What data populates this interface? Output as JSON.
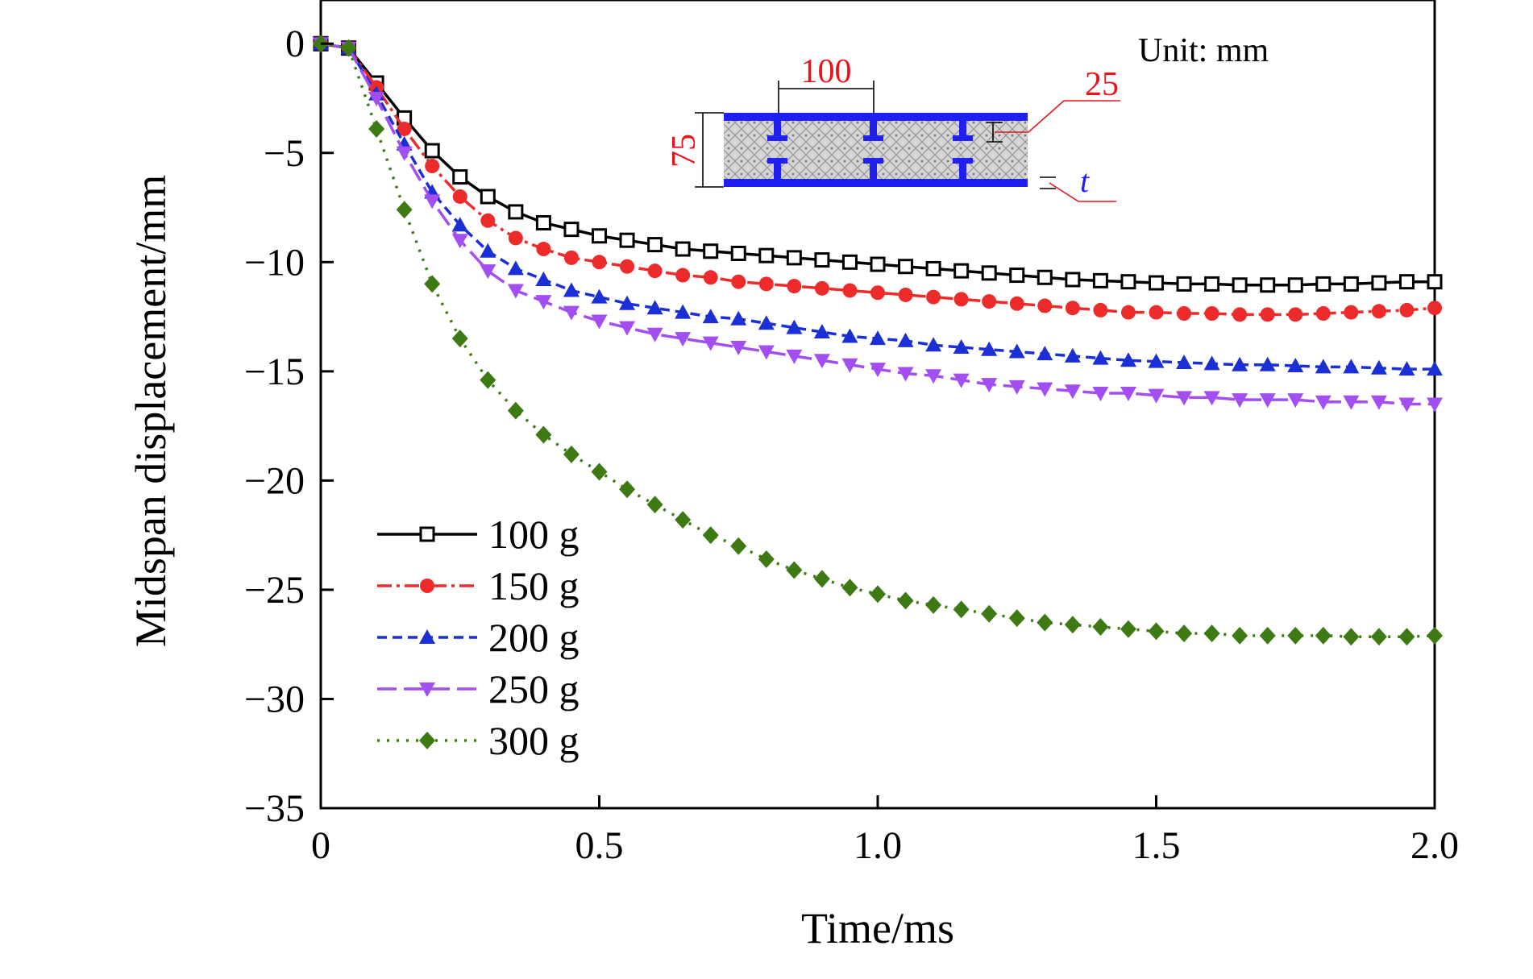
{
  "chart_data": {
    "type": "line",
    "xlabel": "Time/ms",
    "ylabel": "Midspan displacement/mm",
    "xlim": [
      0,
      2.0
    ],
    "ylim": [
      -35,
      2
    ],
    "xticks": [
      0,
      0.5,
      1.0,
      1.5,
      2.0
    ],
    "xtick_labels": [
      "0",
      "0.5",
      "1.0",
      "1.5",
      "2.0"
    ],
    "yticks": [
      0,
      -5,
      -10,
      -15,
      -20,
      -25,
      -30,
      -35
    ],
    "ytick_labels": [
      "0",
      "−5",
      "−10",
      "−15",
      "−20",
      "−25",
      "−30",
      "−35"
    ],
    "grid": false,
    "legend_position": "bottom-left",
    "x": [
      0,
      0.05,
      0.1,
      0.15,
      0.2,
      0.25,
      0.3,
      0.35,
      0.4,
      0.45,
      0.5,
      0.55,
      0.6,
      0.65,
      0.7,
      0.75,
      0.8,
      0.85,
      0.9,
      0.95,
      1.0,
      1.05,
      1.1,
      1.15,
      1.2,
      1.25,
      1.3,
      1.35,
      1.4,
      1.45,
      1.5,
      1.55,
      1.6,
      1.65,
      1.7,
      1.75,
      1.8,
      1.85,
      1.9,
      1.95,
      2.0
    ],
    "series": [
      {
        "name": "100 g",
        "color": "#000000",
        "marker": "square-open",
        "dash": "solid",
        "values": [
          0,
          -0.2,
          -1.8,
          -3.4,
          -4.9,
          -6.1,
          -7.0,
          -7.7,
          -8.2,
          -8.5,
          -8.8,
          -9.0,
          -9.2,
          -9.4,
          -9.5,
          -9.6,
          -9.7,
          -9.8,
          -9.9,
          -10.0,
          -10.1,
          -10.2,
          -10.3,
          -10.4,
          -10.5,
          -10.6,
          -10.7,
          -10.8,
          -10.85,
          -10.9,
          -10.95,
          -11.0,
          -11.0,
          -11.05,
          -11.05,
          -11.05,
          -11.0,
          -11.0,
          -10.95,
          -10.9,
          -10.9
        ]
      },
      {
        "name": "150 g",
        "color": "#ee2b2b",
        "marker": "circle",
        "dash": "dashdot",
        "values": [
          0,
          -0.2,
          -2.0,
          -3.9,
          -5.6,
          -7.0,
          -8.1,
          -8.9,
          -9.4,
          -9.8,
          -10.0,
          -10.2,
          -10.4,
          -10.6,
          -10.7,
          -10.9,
          -11.0,
          -11.1,
          -11.2,
          -11.3,
          -11.4,
          -11.5,
          -11.6,
          -11.7,
          -11.8,
          -11.9,
          -12.0,
          -12.1,
          -12.2,
          -12.3,
          -12.3,
          -12.35,
          -12.35,
          -12.4,
          -12.4,
          -12.4,
          -12.35,
          -12.3,
          -12.25,
          -12.2,
          -12.1
        ]
      },
      {
        "name": "200 g",
        "color": "#1b2fd6",
        "marker": "triangle-up",
        "dash": "dash",
        "values": [
          0,
          -0.2,
          -2.3,
          -4.6,
          -6.8,
          -8.3,
          -9.5,
          -10.3,
          -10.8,
          -11.3,
          -11.6,
          -11.9,
          -12.1,
          -12.3,
          -12.5,
          -12.6,
          -12.8,
          -13.0,
          -13.2,
          -13.4,
          -13.5,
          -13.6,
          -13.8,
          -13.9,
          -14.0,
          -14.1,
          -14.2,
          -14.3,
          -14.4,
          -14.5,
          -14.55,
          -14.6,
          -14.65,
          -14.7,
          -14.7,
          -14.75,
          -14.8,
          -14.8,
          -14.85,
          -14.9,
          -14.9
        ]
      },
      {
        "name": "250 g",
        "color": "#a24ef0",
        "marker": "triangle-down",
        "dash": "longdash",
        "values": [
          0,
          -0.2,
          -2.5,
          -5.0,
          -7.2,
          -9.0,
          -10.4,
          -11.3,
          -11.8,
          -12.3,
          -12.7,
          -13.0,
          -13.3,
          -13.5,
          -13.7,
          -13.9,
          -14.1,
          -14.3,
          -14.5,
          -14.7,
          -14.9,
          -15.1,
          -15.2,
          -15.4,
          -15.6,
          -15.7,
          -15.8,
          -15.9,
          -16.0,
          -16.0,
          -16.1,
          -16.2,
          -16.2,
          -16.3,
          -16.3,
          -16.3,
          -16.4,
          -16.4,
          -16.4,
          -16.5,
          -16.5
        ]
      },
      {
        "name": "300 g",
        "color": "#3d7a14",
        "marker": "diamond",
        "dash": "dot",
        "values": [
          0,
          -0.2,
          -3.9,
          -7.6,
          -11.0,
          -13.5,
          -15.4,
          -16.8,
          -17.9,
          -18.8,
          -19.6,
          -20.4,
          -21.1,
          -21.8,
          -22.5,
          -23.0,
          -23.6,
          -24.1,
          -24.5,
          -24.9,
          -25.2,
          -25.5,
          -25.7,
          -25.9,
          -26.1,
          -26.3,
          -26.5,
          -26.6,
          -26.7,
          -26.8,
          -26.9,
          -27.0,
          -27.0,
          -27.1,
          -27.1,
          -27.1,
          -27.1,
          -27.15,
          -27.15,
          -27.15,
          -27.1
        ]
      }
    ]
  },
  "inset": {
    "unit_label": "Unit: mm",
    "dim_width": "100",
    "dim_height": "75",
    "dim_flange": "25",
    "dim_thickness": "t",
    "plate_color": "#1f1ff0",
    "core_color": "#cfcfcf",
    "dim_text_color": "#e8131b"
  }
}
